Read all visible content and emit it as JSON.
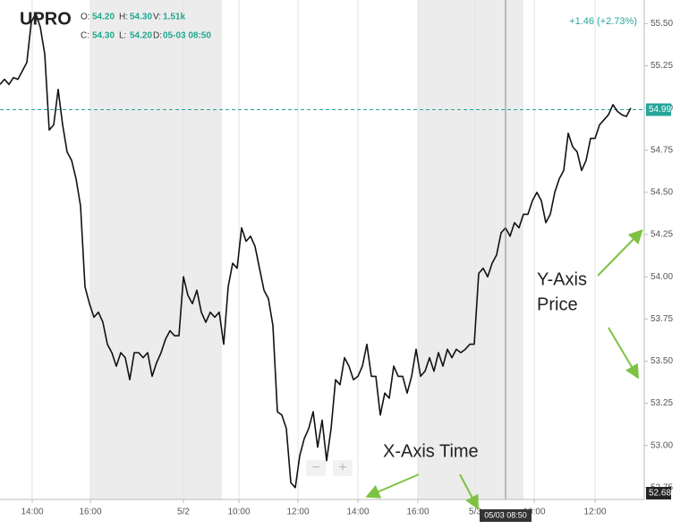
{
  "chart_data": {
    "type": "line",
    "title": "UPRO",
    "ohlc": [
      {
        "name": "O:",
        "value": "54.20"
      },
      {
        "name": "H:",
        "value": "54.30"
      },
      {
        "name": "V:",
        "value": "1.51k"
      },
      {
        "name": "C:",
        "value": "54.30"
      },
      {
        "name": "L:",
        "value": "54.20"
      },
      {
        "name": "D:",
        "value": "05-03 08:50"
      }
    ],
    "change": "+1.46 (+2.73%)",
    "color": "#111111",
    "accent_color": "#26a69a",
    "x": [
      0,
      1,
      2,
      3,
      4,
      5,
      6,
      7,
      8,
      9,
      10,
      11,
      12,
      13,
      14,
      15,
      16,
      17,
      18,
      19,
      20,
      21,
      22,
      23,
      24,
      25,
      26,
      27,
      28,
      29,
      30,
      31,
      32,
      33,
      34,
      35,
      36,
      37,
      38,
      39,
      40,
      41,
      42,
      43,
      44,
      45,
      46,
      47,
      48,
      49,
      50,
      51,
      52,
      53,
      54,
      55,
      56,
      57,
      58,
      59,
      60,
      61,
      62,
      63,
      64,
      65,
      66,
      67,
      68,
      69,
      70,
      71,
      72,
      73,
      74,
      75,
      76,
      77,
      78,
      79,
      80,
      81,
      82,
      83,
      84,
      85,
      86,
      87,
      88,
      89,
      90,
      91,
      92,
      93,
      94,
      95,
      96,
      97,
      98,
      99,
      100,
      101,
      102,
      103,
      104,
      105,
      106,
      107,
      108,
      109,
      110,
      111,
      112,
      113,
      114,
      115,
      116,
      117,
      118,
      119,
      120,
      121,
      122,
      123,
      124,
      125,
      126,
      127,
      128,
      129,
      130,
      131,
      132,
      133,
      134,
      135,
      136,
      137,
      138,
      139,
      140,
      141
    ],
    "values": [
      55.14,
      55.17,
      55.14,
      55.18,
      55.17,
      55.22,
      55.27,
      55.51,
      55.56,
      55.48,
      55.32,
      54.87,
      54.9,
      55.11,
      54.9,
      54.74,
      54.69,
      54.58,
      54.42,
      53.94,
      53.84,
      53.76,
      53.79,
      53.73,
      53.6,
      53.55,
      53.47,
      53.55,
      53.52,
      53.39,
      53.55,
      53.55,
      53.52,
      53.55,
      53.41,
      53.49,
      53.55,
      53.63,
      53.68,
      53.65,
      53.65,
      54.0,
      53.89,
      53.84,
      53.92,
      53.79,
      53.73,
      53.79,
      53.76,
      53.79,
      53.6,
      53.94,
      54.08,
      54.05,
      54.29,
      54.21,
      54.24,
      54.18,
      54.05,
      53.92,
      53.87,
      53.71,
      53.2,
      53.18,
      53.1,
      52.78,
      52.75,
      52.94,
      53.04,
      53.1,
      53.2,
      52.99,
      53.15,
      52.91,
      53.1,
      53.39,
      53.36,
      53.52,
      53.47,
      53.39,
      53.41,
      53.47,
      53.6,
      53.41,
      53.41,
      53.18,
      53.31,
      53.28,
      53.47,
      53.41,
      53.41,
      53.31,
      53.41,
      53.57,
      53.41,
      53.44,
      53.52,
      53.44,
      53.55,
      53.47,
      53.57,
      53.52,
      53.57,
      53.55,
      53.57,
      53.6,
      53.6,
      54.02,
      54.05,
      54.0,
      54.08,
      54.13,
      54.26,
      54.29,
      54.24,
      54.32,
      54.29,
      54.37,
      54.37,
      54.45,
      54.5,
      54.45,
      54.32,
      54.37,
      54.5,
      54.58,
      54.63,
      54.85,
      54.77,
      54.74,
      54.63,
      54.69,
      54.82,
      54.82,
      54.9,
      54.93,
      54.96,
      55.02,
      54.98,
      54.96,
      54.95,
      55.0
    ],
    "xlim": [
      0,
      144
    ],
    "xticks": [
      {
        "value": 7.2,
        "label": "14:00"
      },
      {
        "value": 20.2,
        "label": "16:00"
      },
      {
        "value": 41,
        "label": "5/2"
      },
      {
        "value": 53.4,
        "label": "10:00"
      },
      {
        "value": 66.6,
        "label": "12:00"
      },
      {
        "value": 80,
        "label": "14:00"
      },
      {
        "value": 93.4,
        "label": "16:00"
      },
      {
        "value": 106.2,
        "label": "5/3"
      },
      {
        "value": 119.4,
        "label": "10:00"
      },
      {
        "value": 133,
        "label": "12:00"
      }
    ],
    "ylim": [
      52.68,
      55.64
    ],
    "yticks": [
      {
        "value": 55.5,
        "label": "55.50"
      },
      55.25,
      {
        "value": 55,
        "label": "55.00"
      },
      54.75,
      {
        "value": 54.5,
        "label": "54.50"
      },
      54.25,
      {
        "value": 54,
        "label": "54.00"
      },
      53.75,
      {
        "value": 53.5,
        "label": "53.50"
      },
      53.25,
      {
        "value": 53,
        "label": "53.00"
      },
      52.75
    ],
    "grid": "x",
    "shaded_ranges": [
      [
        20.2,
        49.6
      ],
      [
        93.4,
        117
      ]
    ],
    "last_price": 54.99,
    "low_price": 52.68,
    "crosshair": {
      "x": 113,
      "label": "05/03 08:50"
    },
    "annotations": [
      {
        "lines": [
          "Y-Axis",
          "Price"
        ]
      },
      {
        "lines": [
          "X-Axis Time"
        ]
      }
    ],
    "controls": [
      "−",
      "+"
    ]
  }
}
